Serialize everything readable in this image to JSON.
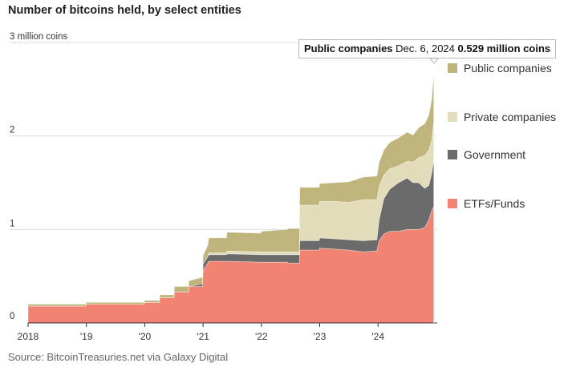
{
  "title": "Number of bitcoins held, by select entities",
  "source": "Source: BitcoinTreasuries.net via Galaxy Digital",
  "tooltip": {
    "series": "Public companies",
    "date": "Dec. 6, 2024",
    "value": "0.529 million coins"
  },
  "colors": {
    "etf": "#f28373",
    "government": "#6b6b6b",
    "private": "#e3dcbb",
    "public": "#bfb57c",
    "grid": "#dddddd",
    "axis": "#333333"
  },
  "chart_data": {
    "type": "area",
    "stacked": true,
    "title": "Number of bitcoins held, by select entities",
    "ylabel": "million coins",
    "ylim": [
      0,
      3
    ],
    "xlim": [
      2018.0,
      2024.96
    ],
    "x_ticks": [
      {
        "value": 2018,
        "label": "2018"
      },
      {
        "value": 2019,
        "label": "'19"
      },
      {
        "value": 2020,
        "label": "'20"
      },
      {
        "value": 2021,
        "label": "'21"
      },
      {
        "value": 2022,
        "label": "'22"
      },
      {
        "value": 2023,
        "label": "'23"
      },
      {
        "value": 2024,
        "label": "'24"
      }
    ],
    "y_ticks": [
      {
        "value": 0,
        "label": "0"
      },
      {
        "value": 1,
        "label": "1"
      },
      {
        "value": 2,
        "label": "2"
      },
      {
        "value": 3,
        "label": "3 million coins"
      }
    ],
    "x": [
      2018.0,
      2018.99,
      2019.0,
      2019.99,
      2020.0,
      2020.25,
      2020.26,
      2020.5,
      2020.51,
      2020.75,
      2020.76,
      2020.99,
      2021.0,
      2021.08,
      2021.1,
      2021.4,
      2021.41,
      2021.99,
      2022.0,
      2022.45,
      2022.46,
      2022.65,
      2022.66,
      2022.99,
      2023.0,
      2023.25,
      2023.5,
      2023.75,
      2023.98,
      2024.02,
      2024.1,
      2024.2,
      2024.35,
      2024.5,
      2024.6,
      2024.7,
      2024.8,
      2024.87,
      2024.92,
      2024.96
    ],
    "series": [
      {
        "name": "ETFs/Funds",
        "values": [
          0.18,
          0.18,
          0.2,
          0.2,
          0.22,
          0.22,
          0.27,
          0.27,
          0.33,
          0.33,
          0.39,
          0.39,
          0.56,
          0.64,
          0.66,
          0.66,
          0.66,
          0.65,
          0.65,
          0.65,
          0.64,
          0.64,
          0.78,
          0.78,
          0.8,
          0.79,
          0.78,
          0.76,
          0.77,
          0.88,
          0.95,
          0.98,
          0.98,
          1.0,
          1.0,
          1.0,
          1.02,
          1.1,
          1.2,
          1.25
        ]
      },
      {
        "name": "Government",
        "values": [
          0.0,
          0.0,
          0.0,
          0.0,
          0.0,
          0.0,
          0.0,
          0.0,
          0.0,
          0.0,
          0.0,
          0.03,
          0.07,
          0.07,
          0.07,
          0.07,
          0.08,
          0.08,
          0.08,
          0.08,
          0.09,
          0.09,
          0.1,
          0.1,
          0.11,
          0.11,
          0.11,
          0.12,
          0.12,
          0.23,
          0.38,
          0.45,
          0.52,
          0.55,
          0.5,
          0.5,
          0.42,
          0.37,
          0.4,
          0.52
        ]
      },
      {
        "name": "Private companies",
        "values": [
          0.0,
          0.0,
          0.0,
          0.0,
          0.0,
          0.0,
          0.0,
          0.0,
          0.0,
          0.0,
          0.0,
          0.0,
          0.0,
          0.0,
          0.02,
          0.02,
          0.03,
          0.03,
          0.03,
          0.03,
          0.03,
          0.03,
          0.38,
          0.38,
          0.39,
          0.4,
          0.4,
          0.44,
          0.43,
          0.35,
          0.25,
          0.22,
          0.18,
          0.18,
          0.22,
          0.27,
          0.35,
          0.38,
          0.35,
          0.4
        ]
      },
      {
        "name": "Public companies",
        "values": [
          0.02,
          0.02,
          0.02,
          0.02,
          0.02,
          0.02,
          0.03,
          0.03,
          0.06,
          0.06,
          0.06,
          0.07,
          0.09,
          0.12,
          0.16,
          0.16,
          0.2,
          0.2,
          0.22,
          0.24,
          0.25,
          0.25,
          0.19,
          0.19,
          0.19,
          0.2,
          0.22,
          0.24,
          0.25,
          0.26,
          0.27,
          0.28,
          0.3,
          0.31,
          0.29,
          0.32,
          0.34,
          0.37,
          0.44,
          0.529
        ]
      }
    ],
    "legend": [
      "Public companies",
      "Private companies",
      "Government",
      "ETFs/Funds"
    ]
  }
}
